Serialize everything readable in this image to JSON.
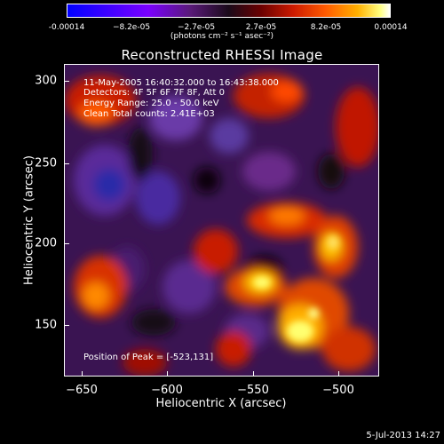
{
  "colorbar": {
    "ticks": [
      "-0.00014",
      "−8.2e-05",
      "−2.7e-05",
      "2.7e-05",
      "8.2e-05",
      "0.00014"
    ],
    "unit": "(photons cm⁻² s⁻¹ asec⁻²)"
  },
  "title": "Reconstructed RHESSI Image",
  "info": {
    "time": "11-May-2005 16:40:32.000 to 16:43:38.000",
    "detectors": "Detectors: 4F 5F 6F 7F 8F, Att 0",
    "energy": "Energy Range: 25.0 - 50.0 keV",
    "clean": "Clean     Total counts: 2.41E+03",
    "peak": "Position of Peak = [-523,131]"
  },
  "axes": {
    "xlabel": "Heliocentric X (arcsec)",
    "ylabel": "Heliocentric Y (arcsec)",
    "xticks": [
      "−650",
      "−600",
      "−550",
      "−500"
    ],
    "yticks": [
      "300",
      "250",
      "200",
      "150"
    ]
  },
  "footer_date": "5-Jul-2013 14:27"
}
